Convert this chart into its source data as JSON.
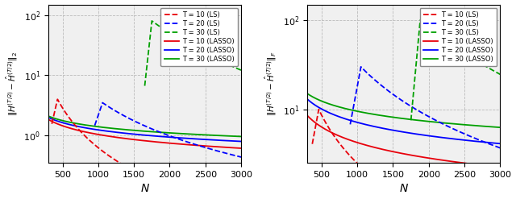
{
  "xlabel": "N",
  "ylabel_left": "$\\|H^{(T/2)} - \\hat{H}^{(T/2)}\\|_2$",
  "ylabel_right": "$\\|H^{(T/2)} - \\hat{H}^{(T/2)}\\|_F$",
  "N_min": 300,
  "N_max": 3000,
  "colors": {
    "T10": "#e8000b",
    "T20": "#0000ff",
    "T30": "#00a000"
  },
  "ylim_left": [
    0.35,
    150
  ],
  "ylim_right": [
    2.5,
    150
  ],
  "grid_color": "#bbbbbb",
  "bg_color": "#f0f0f0",
  "lw": 1.3
}
